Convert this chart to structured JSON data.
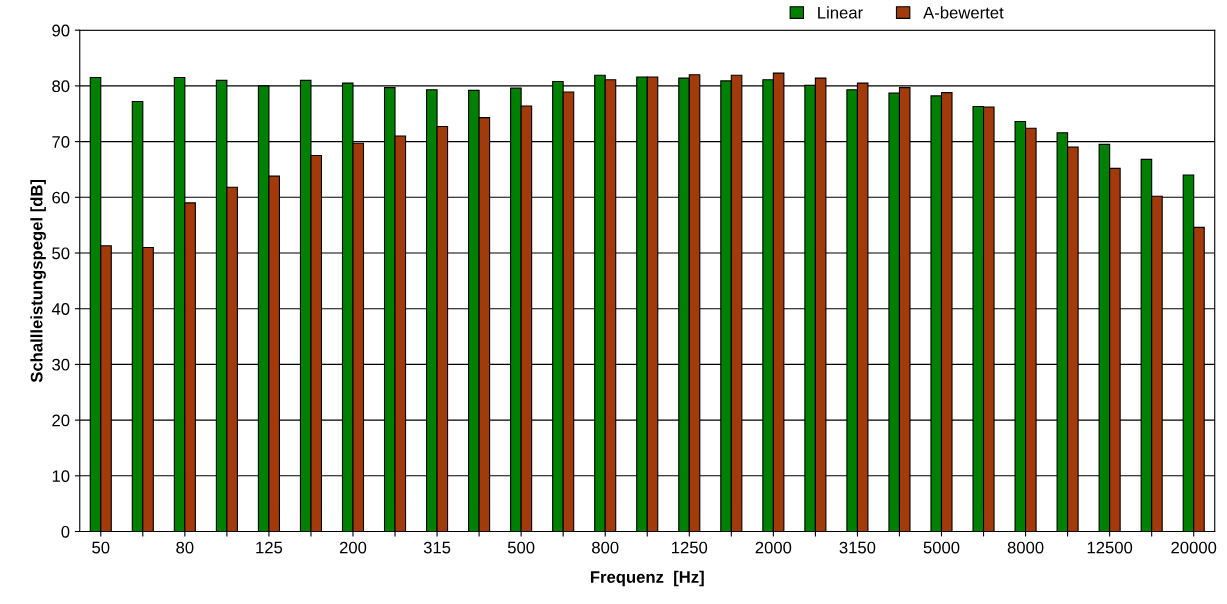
{
  "chart_data": {
    "type": "bar",
    "xlabel": "Frequenz  [Hz]",
    "ylabel": "Schallleistungspegel [dB]",
    "categories": [
      "50",
      null,
      "80",
      null,
      "125",
      null,
      "200",
      null,
      "315",
      null,
      "500",
      null,
      "800",
      null,
      "1250",
      null,
      "2000",
      null,
      "3150",
      null,
      "5000",
      null,
      "8000",
      null,
      "12500",
      null,
      "20000"
    ],
    "series": [
      {
        "name": "Linear",
        "color": "#008000",
        "values": [
          81.5,
          77.2,
          81.5,
          81,
          80,
          81,
          80.5,
          79.7,
          79.3,
          79.2,
          79.6,
          80.8,
          81.9,
          81.6,
          81.4,
          80.9,
          81.1,
          80.1,
          79.3,
          78.7,
          78.2,
          76.3,
          73.6,
          71.6,
          69.5,
          66.8,
          64
        ]
      },
      {
        "name": "A-bewertet",
        "color": "#a33a0c",
        "values": [
          51.3,
          51,
          59,
          61.8,
          63.8,
          67.5,
          69.7,
          71,
          72.7,
          74.3,
          76.4,
          78.9,
          81.1,
          81.6,
          82,
          81.9,
          82.3,
          81.4,
          80.5,
          79.7,
          78.8,
          76.2,
          72.4,
          69,
          65.2,
          60.2,
          54.6
        ]
      }
    ],
    "ylim": [
      0,
      90
    ],
    "yticks": [
      0,
      10,
      20,
      30,
      40,
      50,
      60,
      70,
      80,
      90
    ],
    "grid": "y",
    "legend": "top"
  }
}
